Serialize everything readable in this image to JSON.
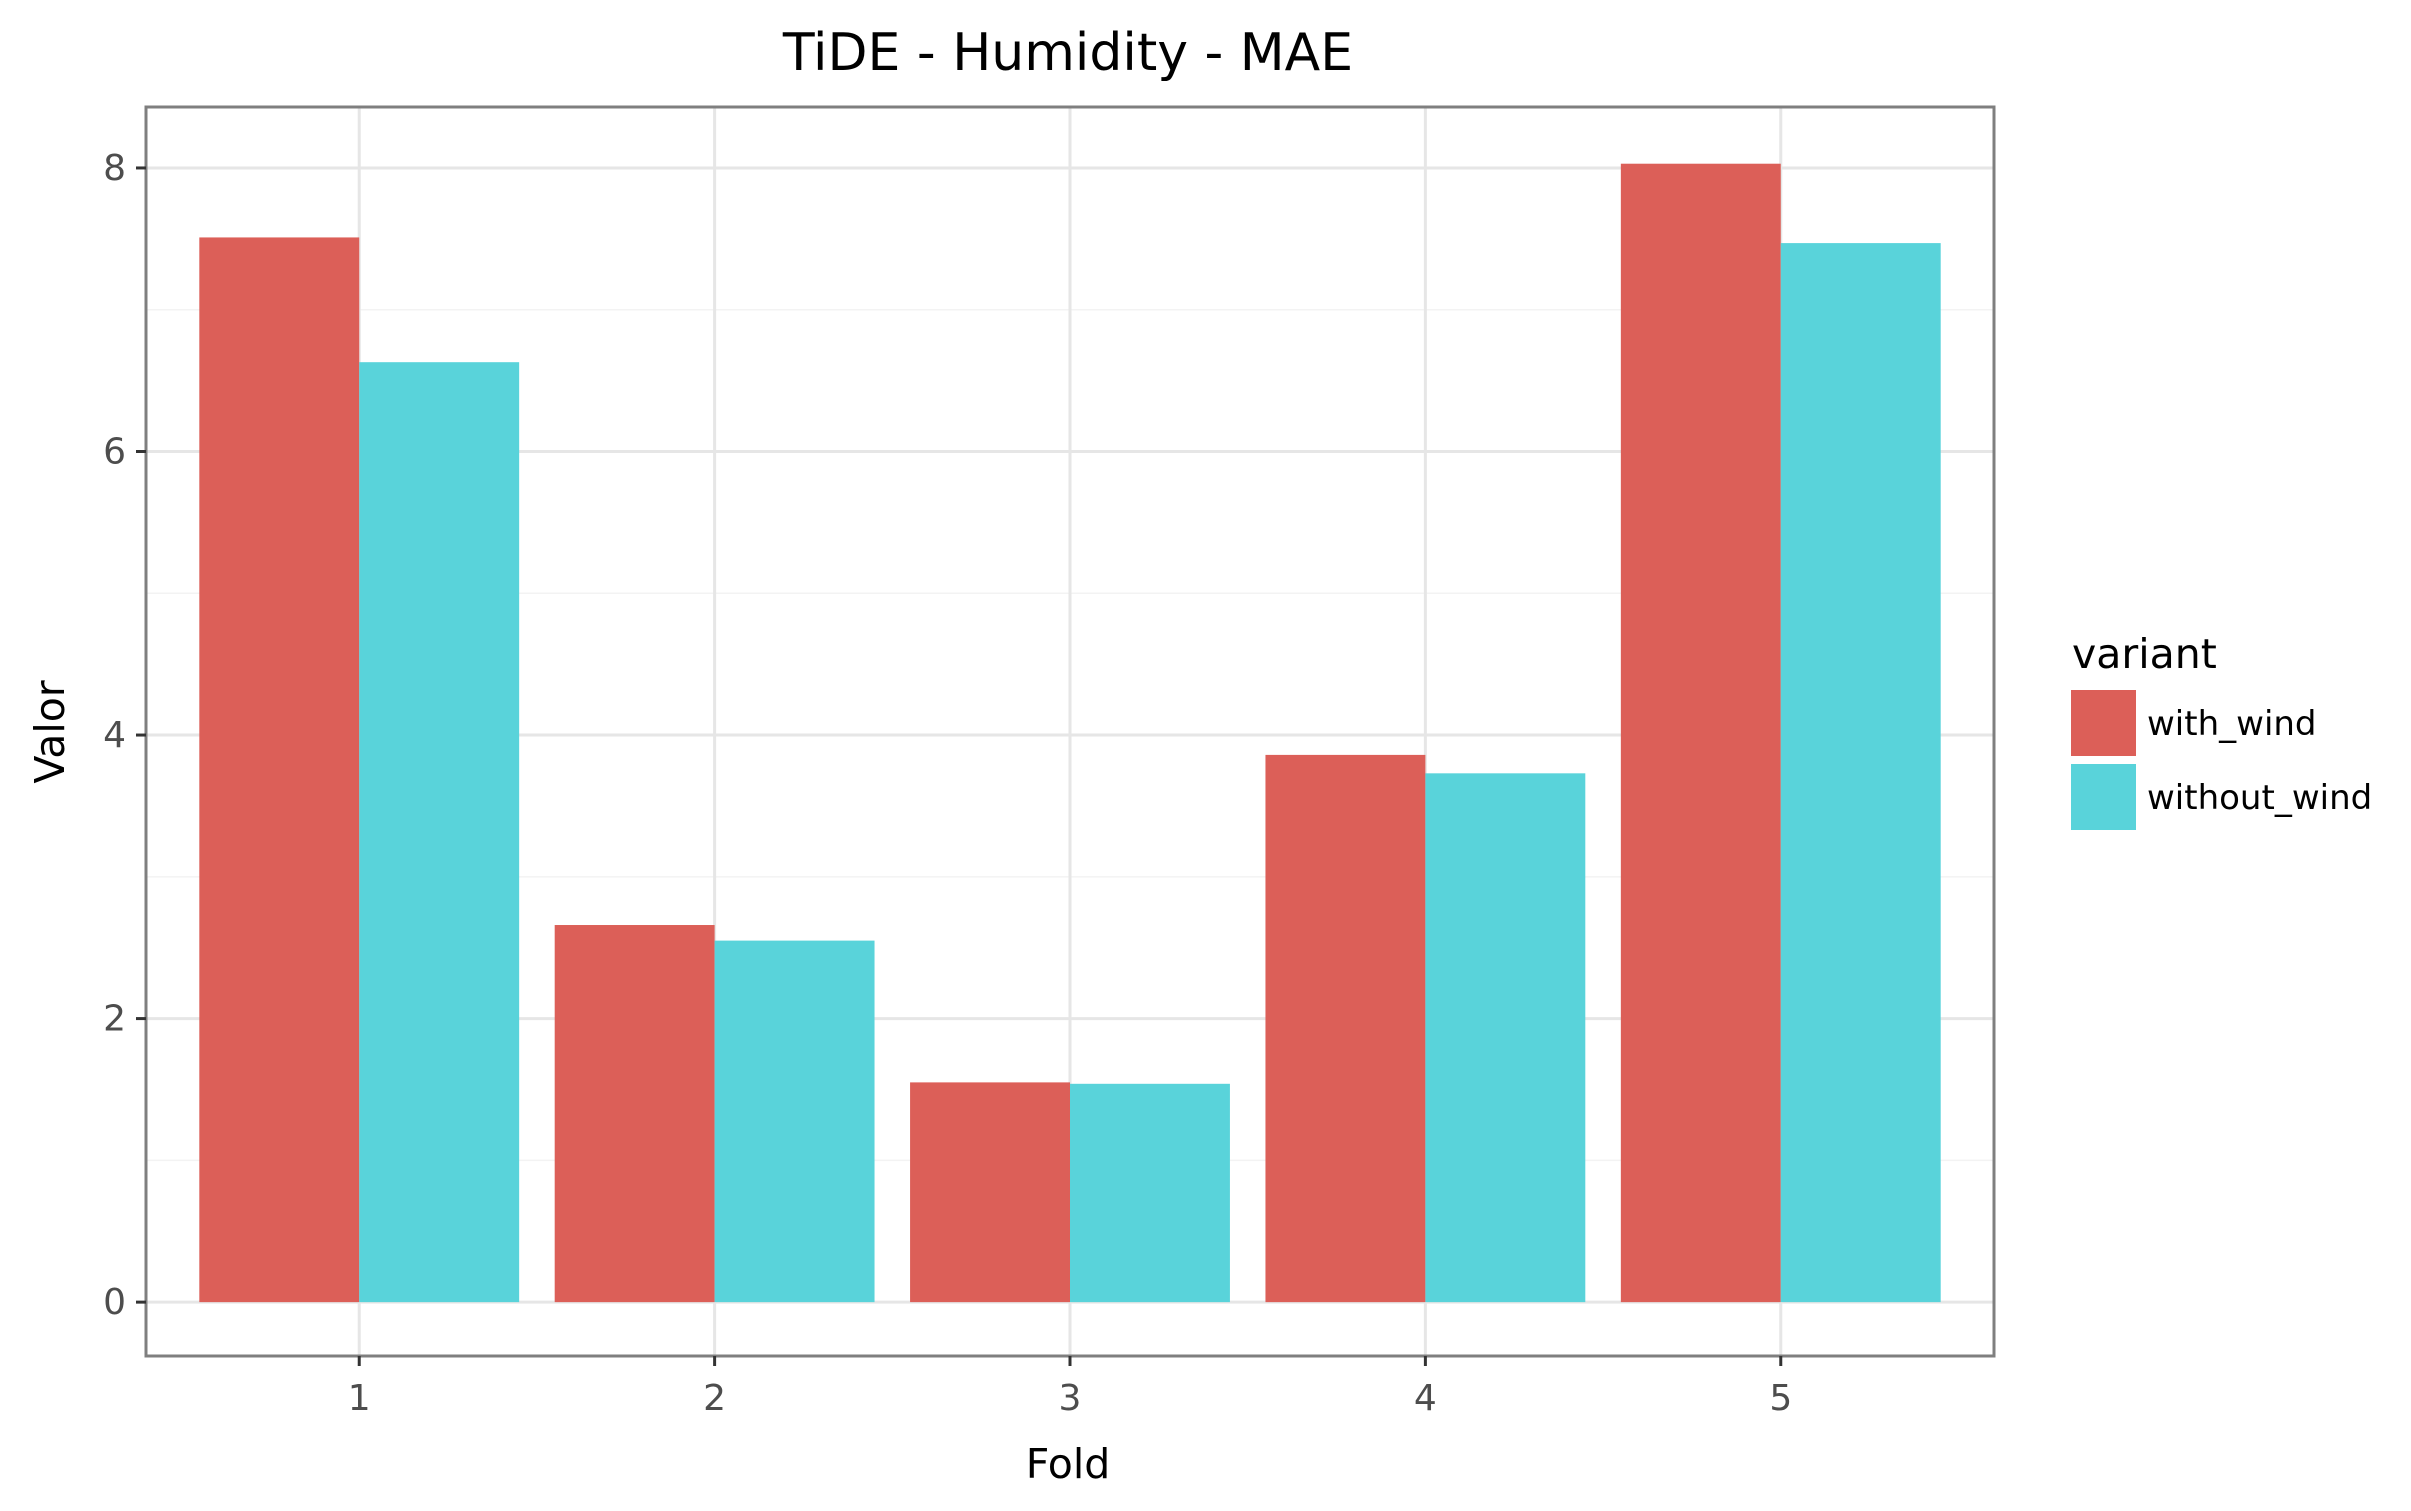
{
  "chart_data": {
    "type": "bar",
    "title": "TiDE - Humidity - MAE",
    "xlabel": "Fold",
    "ylabel": "Valor",
    "categories": [
      "1",
      "2",
      "3",
      "4",
      "5"
    ],
    "series": [
      {
        "name": "with_wind",
        "color": "#dc5f58",
        "values": [
          7.51,
          2.66,
          1.55,
          3.86,
          8.03
        ]
      },
      {
        "name": "without_wind",
        "color": "#59d3da",
        "values": [
          6.63,
          2.55,
          1.54,
          3.73,
          7.47
        ]
      }
    ],
    "ylim": [
      -0.38,
      8.43
    ],
    "yticks": [
      0,
      2,
      4,
      6,
      8
    ],
    "grid": true,
    "legend": {
      "title": "variant",
      "position": "right"
    }
  }
}
